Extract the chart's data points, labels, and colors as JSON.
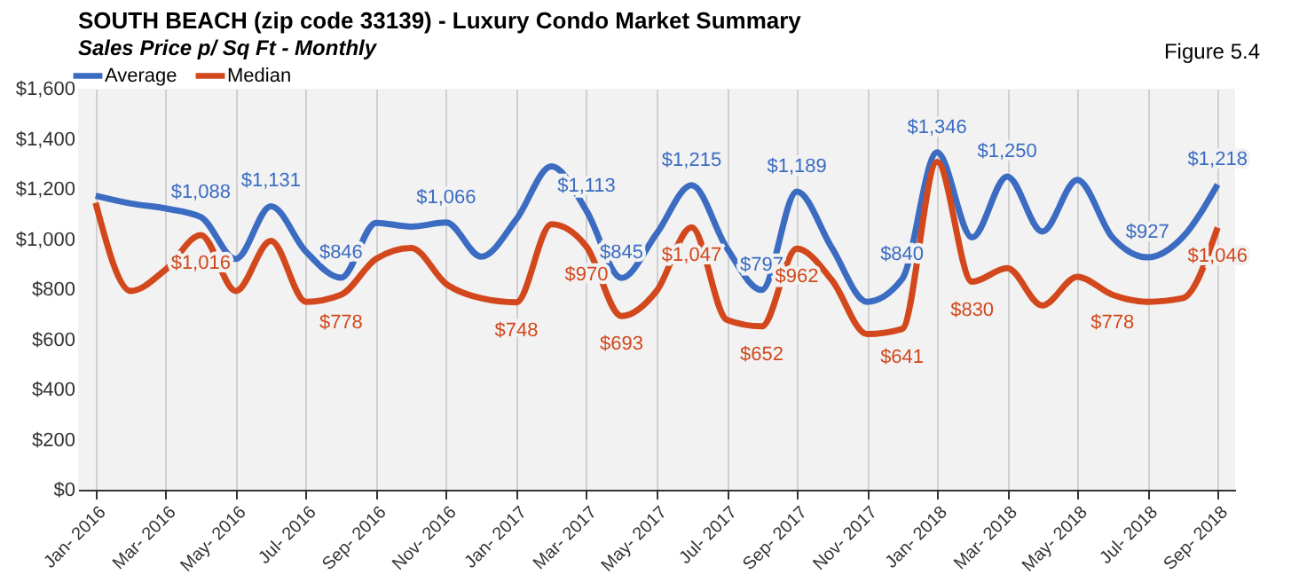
{
  "chart_data": {
    "type": "line",
    "title": "SOUTH BEACH (zip code 33139) - Luxury Condo Market Summary",
    "subtitle": "Sales Price  p/ Sq Ft - Monthly",
    "annotations": [
      "Figure 5.4"
    ],
    "categories": [
      "Jan- 2016",
      null,
      "Mar- 2016",
      null,
      "May- 2016",
      null,
      "Jul- 2016",
      null,
      "Sep- 2016",
      null,
      "Nov- 2016",
      null,
      "Jan- 2017",
      null,
      "Mar- 2017",
      null,
      "May- 2017",
      null,
      "Jul- 2017",
      null,
      "Sep- 2017",
      null,
      "Nov- 2017",
      null,
      "Jan- 2018",
      null,
      "Mar- 2018",
      null,
      "May- 2018",
      null,
      "Jul- 2018",
      null,
      "Sep- 2018"
    ],
    "series": [
      {
        "name": "Average",
        "color": "#3b6cc2",
        "values": [
          1173,
          1142,
          1122,
          1088,
          921,
          1131,
          950,
          846,
          1065,
          1050,
          1066,
          930,
          1079,
          1290,
          1113,
          845,
          1022,
          1215,
          965,
          797,
          1189,
          965,
          750,
          840,
          1346,
          1007,
          1250,
          1030,
          1236,
          1007,
          927,
          1007,
          1218
        ],
        "value_labels": [
          null,
          null,
          null,
          "$1,088",
          null,
          "$1,131",
          null,
          "$846",
          null,
          null,
          "$1,066",
          null,
          null,
          null,
          "$1,113",
          "$845",
          null,
          "$1,215",
          null,
          "$797",
          "$1,189",
          null,
          null,
          "$840",
          "$1,346",
          null,
          "$1,250",
          null,
          null,
          null,
          "$927",
          null,
          "$1,218"
        ]
      },
      {
        "name": "Median",
        "color": "#d2481c",
        "values": [
          1145,
          793,
          879,
          1016,
          793,
          993,
          750,
          778,
          921,
          965,
          821,
          764,
          748,
          1059,
          970,
          693,
          793,
          1047,
          678,
          652,
          962,
          836,
          621,
          641,
          1308,
          830,
          884,
          735,
          850,
          778,
          750,
          764,
          1046
        ],
        "value_labels": [
          null,
          null,
          null,
          "$1,016",
          null,
          null,
          null,
          "$778",
          null,
          null,
          null,
          null,
          "$748",
          null,
          "$970",
          "$693",
          null,
          "$1,047",
          null,
          "$652",
          "$962",
          null,
          null,
          "$641",
          null,
          "$830",
          null,
          null,
          null,
          "$778",
          null,
          null,
          "$1,046"
        ]
      }
    ],
    "ylim": [
      0,
      1600
    ],
    "yticks": [
      {
        "value": 0,
        "label": "$0"
      },
      {
        "value": 200,
        "label": "$200"
      },
      {
        "value": 400,
        "label": "$400"
      },
      {
        "value": 600,
        "label": "$600"
      },
      {
        "value": 800,
        "label": "$800"
      },
      {
        "value": 1000,
        "label": "$1,000"
      },
      {
        "value": 1200,
        "label": "$1,200"
      },
      {
        "value": 1400,
        "label": "$1,400"
      },
      {
        "value": 1600,
        "label": "$1,600"
      }
    ],
    "grid": "x",
    "legend": "top",
    "marker": "none",
    "line_style": "solid"
  }
}
